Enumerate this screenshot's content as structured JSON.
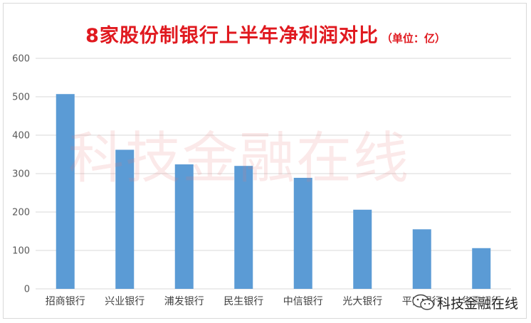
{
  "chart_data": {
    "type": "bar",
    "title": "8家股份制银行上半年净利润对比",
    "title_unit": "（单位：亿）",
    "categories": [
      "招商银行",
      "兴业银行",
      "浦发银行",
      "民生银行",
      "中信银行",
      "光大银行",
      "平安银行",
      "华夏银行"
    ],
    "values": [
      507,
      362,
      324,
      320,
      289,
      206,
      155,
      106
    ],
    "ylim": [
      0,
      600
    ],
    "yticks": [
      0,
      100,
      200,
      300,
      400,
      500,
      600
    ],
    "grid": true,
    "bar_color": "#5b9bd5"
  },
  "watermark": "科技金融在线",
  "logo": {
    "text": "科技金融在线",
    "icon": "wechat-icon"
  }
}
